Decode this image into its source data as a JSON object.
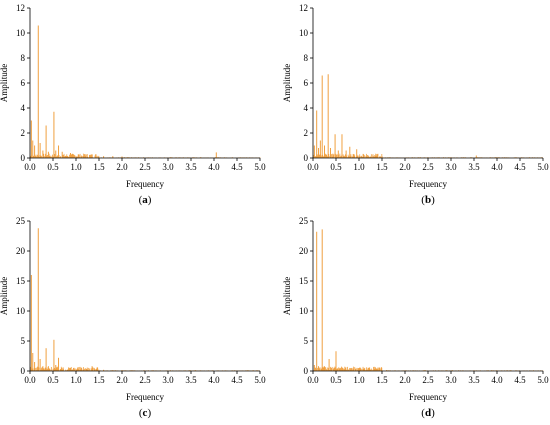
{
  "chart_data": [
    {
      "type": "line",
      "panel_label": "(a)",
      "panel_letter": "a",
      "xlabel": "Frequency",
      "ylabel": "Amplitude",
      "xlim": [
        0,
        5
      ],
      "ylim": [
        0,
        12
      ],
      "xticks": [
        0.0,
        0.5,
        1.0,
        1.5,
        2.0,
        2.5,
        3.0,
        3.5,
        4.0,
        4.5,
        5.0
      ],
      "yticks": [
        0,
        2,
        4,
        6,
        8,
        10,
        12
      ],
      "grid": false,
      "line_color": "#f0a040",
      "peaks": [
        {
          "x": 0.03,
          "y": 3.0
        },
        {
          "x": 0.06,
          "y": 1.4
        },
        {
          "x": 0.1,
          "y": 1.0
        },
        {
          "x": 0.18,
          "y": 10.6
        },
        {
          "x": 0.22,
          "y": 1.2
        },
        {
          "x": 0.28,
          "y": 0.6
        },
        {
          "x": 0.35,
          "y": 2.6
        },
        {
          "x": 0.4,
          "y": 0.5
        },
        {
          "x": 0.52,
          "y": 3.7
        },
        {
          "x": 0.56,
          "y": 0.6
        },
        {
          "x": 0.62,
          "y": 1.0
        },
        {
          "x": 0.7,
          "y": 0.5
        },
        {
          "x": 0.88,
          "y": 0.4
        },
        {
          "x": 1.05,
          "y": 0.3
        },
        {
          "x": 1.2,
          "y": 0.3
        },
        {
          "x": 1.35,
          "y": 0.25
        },
        {
          "x": 1.6,
          "y": 0.15
        },
        {
          "x": 1.8,
          "y": 0.15
        },
        {
          "x": 2.0,
          "y": 0.12
        },
        {
          "x": 4.05,
          "y": 0.45
        }
      ]
    },
    {
      "type": "line",
      "panel_label": "(b)",
      "panel_letter": "b",
      "xlabel": "Frequency",
      "ylabel": "Amplitude",
      "xlim": [
        0,
        5
      ],
      "ylim": [
        0,
        12
      ],
      "xticks": [
        0.0,
        0.5,
        1.0,
        1.5,
        2.0,
        2.5,
        3.0,
        3.5,
        4.0,
        4.5,
        5.0
      ],
      "yticks": [
        0,
        2,
        4,
        6,
        8,
        10,
        12
      ],
      "grid": false,
      "line_color": "#f0a040",
      "peaks": [
        {
          "x": 0.03,
          "y": 1.0
        },
        {
          "x": 0.08,
          "y": 3.8
        },
        {
          "x": 0.12,
          "y": 0.8
        },
        {
          "x": 0.16,
          "y": 1.4
        },
        {
          "x": 0.2,
          "y": 6.6
        },
        {
          "x": 0.25,
          "y": 1.0
        },
        {
          "x": 0.33,
          "y": 6.7
        },
        {
          "x": 0.38,
          "y": 0.8
        },
        {
          "x": 0.48,
          "y": 1.9
        },
        {
          "x": 0.55,
          "y": 0.6
        },
        {
          "x": 0.63,
          "y": 1.9
        },
        {
          "x": 0.72,
          "y": 0.6
        },
        {
          "x": 0.8,
          "y": 0.9
        },
        {
          "x": 0.95,
          "y": 0.7
        },
        {
          "x": 1.1,
          "y": 0.3
        },
        {
          "x": 1.3,
          "y": 0.2
        },
        {
          "x": 1.5,
          "y": 0.15
        },
        {
          "x": 3.55,
          "y": 0.2
        }
      ]
    },
    {
      "type": "line",
      "panel_label": "(c)",
      "panel_letter": "c",
      "xlabel": "Frequency",
      "ylabel": "Amplitude",
      "xlim": [
        0,
        5
      ],
      "ylim": [
        0,
        25
      ],
      "xticks": [
        0.0,
        0.5,
        1.0,
        1.5,
        2.0,
        2.5,
        3.0,
        3.5,
        4.0,
        4.5,
        5.0
      ],
      "yticks": [
        0,
        5,
        10,
        15,
        20,
        25
      ],
      "grid": false,
      "line_color": "#f0a040",
      "peaks": [
        {
          "x": 0.03,
          "y": 16.0
        },
        {
          "x": 0.06,
          "y": 3.0
        },
        {
          "x": 0.1,
          "y": 1.5
        },
        {
          "x": 0.18,
          "y": 23.8
        },
        {
          "x": 0.22,
          "y": 2.0
        },
        {
          "x": 0.28,
          "y": 0.8
        },
        {
          "x": 0.35,
          "y": 3.8
        },
        {
          "x": 0.4,
          "y": 0.8
        },
        {
          "x": 0.52,
          "y": 5.2
        },
        {
          "x": 0.56,
          "y": 1.0
        },
        {
          "x": 0.62,
          "y": 2.2
        },
        {
          "x": 0.72,
          "y": 0.6
        },
        {
          "x": 0.88,
          "y": 0.5
        },
        {
          "x": 1.05,
          "y": 0.3
        },
        {
          "x": 1.35,
          "y": 0.8
        },
        {
          "x": 1.6,
          "y": 0.2
        },
        {
          "x": 2.0,
          "y": 0.15
        }
      ]
    },
    {
      "type": "line",
      "panel_label": "(d)",
      "panel_letter": "d",
      "xlabel": "Frequency",
      "ylabel": "Amplitude",
      "xlim": [
        0,
        5
      ],
      "ylim": [
        0,
        25
      ],
      "xticks": [
        0.0,
        0.5,
        1.0,
        1.5,
        2.0,
        2.5,
        3.0,
        3.5,
        4.0,
        4.5,
        5.0
      ],
      "yticks": [
        0,
        5,
        10,
        15,
        20,
        25
      ],
      "grid": false,
      "line_color": "#f0a040",
      "peaks": [
        {
          "x": 0.03,
          "y": 1.0
        },
        {
          "x": 0.08,
          "y": 23.2
        },
        {
          "x": 0.12,
          "y": 0.8
        },
        {
          "x": 0.2,
          "y": 23.6
        },
        {
          "x": 0.25,
          "y": 0.8
        },
        {
          "x": 0.35,
          "y": 2.0
        },
        {
          "x": 0.4,
          "y": 0.5
        },
        {
          "x": 0.5,
          "y": 3.3
        },
        {
          "x": 0.56,
          "y": 0.6
        },
        {
          "x": 0.65,
          "y": 0.5
        },
        {
          "x": 0.8,
          "y": 0.4
        },
        {
          "x": 1.0,
          "y": 0.5
        },
        {
          "x": 1.1,
          "y": 0.4
        },
        {
          "x": 1.3,
          "y": 0.2
        },
        {
          "x": 1.6,
          "y": 0.15
        },
        {
          "x": 2.0,
          "y": 0.1
        }
      ]
    }
  ]
}
